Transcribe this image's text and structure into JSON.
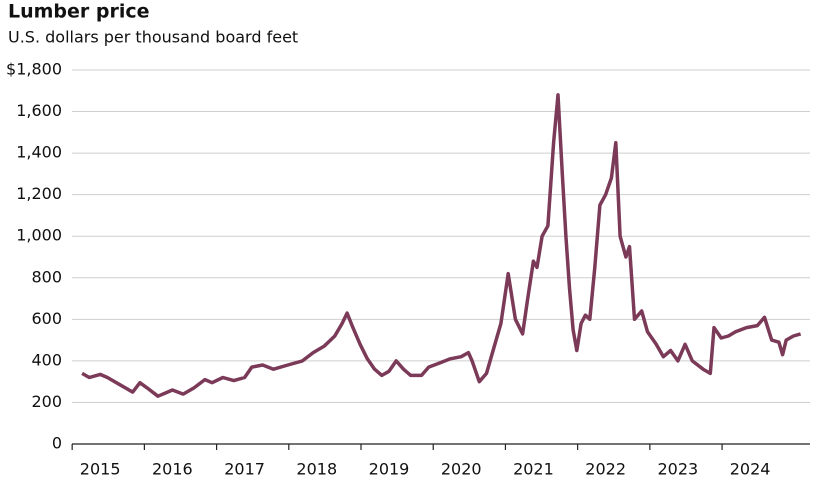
{
  "chart_data": {
    "type": "line",
    "title": "Lumber price",
    "subtitle": "U.S. dollars per thousand board feet",
    "color": "#7b3a58",
    "grid": true,
    "xlim": [
      2014.61,
      2024.83
    ],
    "xticks": [
      2015,
      2016,
      2017,
      2018,
      2019,
      2020,
      2021,
      2022,
      2023,
      2024
    ],
    "ylim": [
      0,
      1800
    ],
    "yticks": [
      0,
      200,
      400,
      600,
      800,
      {
        "value": 1000,
        "label": "1,000"
      },
      {
        "value": 1200,
        "label": "1,200"
      },
      {
        "value": 1400,
        "label": "1,400"
      },
      {
        "value": 1600,
        "label": "1,600"
      },
      {
        "value": 1800,
        "label": "$1,800"
      }
    ],
    "x": [
      2014.75,
      2014.85,
      2015.0,
      2015.1,
      2015.3,
      2015.45,
      2015.55,
      2015.65,
      2015.8,
      2015.9,
      2016.0,
      2016.15,
      2016.3,
      2016.45,
      2016.55,
      2016.7,
      2016.85,
      2017.0,
      2017.1,
      2017.25,
      2017.4,
      2017.6,
      2017.8,
      2017.95,
      2018.1,
      2018.25,
      2018.35,
      2018.42,
      2018.5,
      2018.6,
      2018.7,
      2018.8,
      2018.9,
      2019.0,
      2019.1,
      2019.2,
      2019.3,
      2019.45,
      2019.55,
      2019.7,
      2019.85,
      2020.0,
      2020.1,
      2020.15,
      2020.25,
      2020.35,
      2020.45,
      2020.55,
      2020.65,
      2020.75,
      2020.85,
      2020.92,
      2021.0,
      2021.05,
      2021.12,
      2021.2,
      2021.28,
      2021.34,
      2021.4,
      2021.45,
      2021.5,
      2021.55,
      2021.6,
      2021.66,
      2021.72,
      2021.78,
      2021.85,
      2021.92,
      2022.0,
      2022.08,
      2022.14,
      2022.2,
      2022.28,
      2022.33,
      2022.4,
      2022.5,
      2022.58,
      2022.7,
      2022.8,
      2022.9,
      2023.0,
      2023.1,
      2023.2,
      2023.35,
      2023.45,
      2023.5,
      2023.6,
      2023.7,
      2023.8,
      2023.95,
      2024.1,
      2024.2,
      2024.3,
      2024.4,
      2024.45,
      2024.5,
      2024.6,
      2024.7
    ],
    "series": [
      {
        "values": [
          340,
          320,
          335,
          320,
          280,
          250,
          295,
          270,
          230,
          245,
          260,
          240,
          270,
          310,
          295,
          320,
          305,
          320,
          370,
          380,
          360,
          380,
          400,
          440,
          470,
          520,
          580,
          630,
          560,
          480,
          410,
          360,
          330,
          350,
          400,
          360,
          330,
          330,
          370,
          390,
          410,
          420,
          440,
          400,
          300,
          340,
          460,
          580,
          820,
          600,
          530,
          700,
          880,
          850,
          1000,
          1050,
          1450,
          1680,
          1300,
          1000,
          750,
          550,
          450,
          580,
          620,
          600,
          850,
          1150,
          1200,
          1280,
          1450,
          1000,
          900,
          950,
          600,
          640,
          540,
          480,
          420,
          450,
          400,
          480,
          400,
          360,
          340,
          560,
          510,
          520,
          540,
          560,
          570,
          610,
          500,
          490,
          430,
          500,
          520,
          530
        ]
      }
    ]
  }
}
